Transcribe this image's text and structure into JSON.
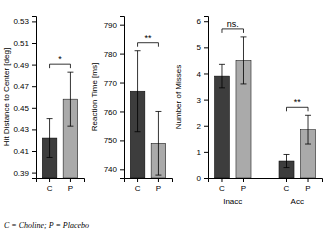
{
  "chart_data": [
    {
      "type": "bar",
      "ylabel": "Hit Distance to Center [deg]",
      "categories": [
        "C",
        "P"
      ],
      "values": [
        0.422,
        0.458
      ],
      "errors": [
        0.018,
        0.025
      ],
      "colors": [
        "#3d3d3d",
        "#aaaaaa"
      ],
      "ylim": [
        0.385,
        0.535
      ],
      "yticks": [
        0.39,
        0.41,
        0.43,
        0.45,
        0.47,
        0.49,
        0.51,
        0.53
      ],
      "annotations": [
        "*"
      ]
    },
    {
      "type": "bar",
      "ylabel": "Reaction Time [ms]",
      "categories": [
        "C",
        "P"
      ],
      "values": [
        767,
        749
      ],
      "errors": [
        14,
        11
      ],
      "colors": [
        "#3d3d3d",
        "#aaaaaa"
      ],
      "ylim": [
        737,
        793
      ],
      "yticks": [
        740,
        750,
        760,
        770,
        780,
        790
      ],
      "annotations": [
        "**"
      ]
    },
    {
      "type": "bar",
      "ylabel": "Number of Misses",
      "categories": [
        "C",
        "P",
        "C",
        "P"
      ],
      "groups": [
        "Inacc",
        "Acc"
      ],
      "values": [
        3.9,
        4.5,
        0.65,
        1.85
      ],
      "errors": [
        0.45,
        0.9,
        0.25,
        0.55
      ],
      "colors": [
        "#3d3d3d",
        "#aaaaaa",
        "#3d3d3d",
        "#aaaaaa"
      ],
      "ylim": [
        0,
        6.2
      ],
      "yticks": [
        0,
        1,
        2,
        3,
        4,
        5,
        6
      ],
      "annotations": [
        "ns.",
        "**"
      ]
    }
  ],
  "footnote": "C = Choline;  P = Placebo"
}
